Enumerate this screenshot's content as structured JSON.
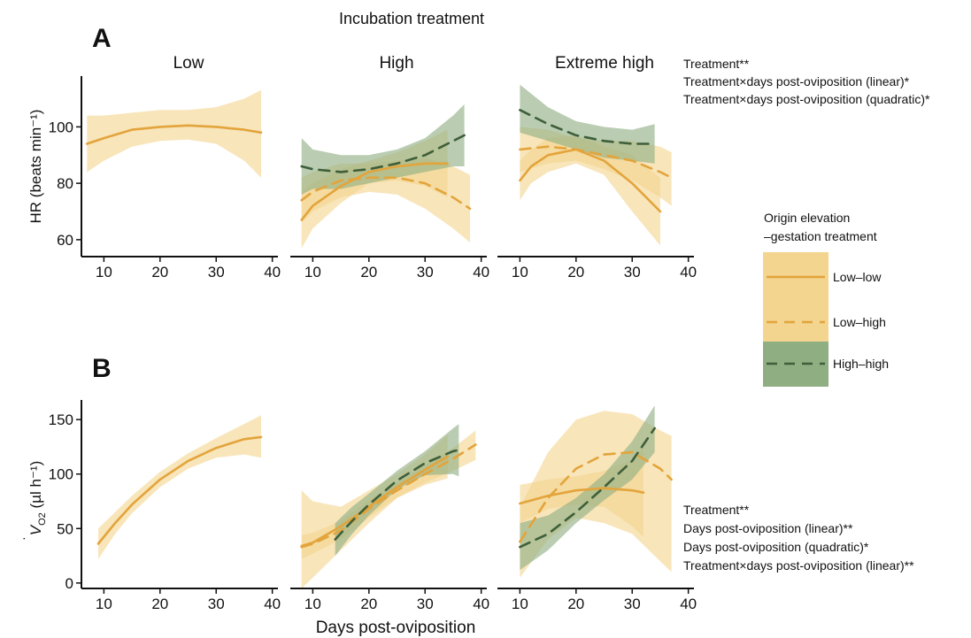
{
  "figure": {
    "top_title": "Incubation treatment",
    "x_axis_label": "Days post-oviposition",
    "panel_letters": [
      "A",
      "B"
    ],
    "column_titles": [
      "Low",
      "High",
      "Extreme high"
    ],
    "ylabel_A": "HR (beats min⁻¹)",
    "ylabel_B_pre": "V",
    "ylabel_B_sub": "O2",
    "ylabel_B_unit": "(µl h⁻¹)",
    "stats_A": [
      "Treatment**",
      "Treatment×days post-oviposition (linear)*",
      "Treatment×days post-oviposition (quadratic)*"
    ],
    "stats_B": [
      "Treatment**",
      "Days post-oviposition (linear)**",
      "Days post-oviposition (quadratic)*",
      "Treatment×days post-oviposition (linear)**"
    ],
    "legend": {
      "title_line1": "Origin elevation",
      "title_line2": "–gestation treatment",
      "items": [
        {
          "label": "Low–low",
          "color": "#E3A43B",
          "fill": "#F3D58F",
          "dash": "solid"
        },
        {
          "label": "Low–high",
          "color": "#E3A43B",
          "fill": "#F3D58F",
          "dash": "dashed"
        },
        {
          "label": "High–high",
          "color": "#3E5F3A",
          "fill": "#8FAE82",
          "dash": "dashed"
        }
      ]
    }
  },
  "chart_data": [
    {
      "type": "line",
      "panel": "A",
      "column": "Low",
      "xlim": [
        6,
        41
      ],
      "ylim": [
        54,
        118
      ],
      "yticks": [
        60,
        80,
        100
      ],
      "xticks": [
        10,
        20,
        30,
        40
      ],
      "series": [
        {
          "group": "Low–low",
          "x": [
            7,
            10,
            15,
            20,
            25,
            30,
            35,
            38
          ],
          "y": [
            94,
            96,
            99,
            100,
            100.5,
            100,
            99,
            98
          ],
          "lower": [
            84,
            88,
            93,
            95,
            95.5,
            94,
            88,
            82
          ],
          "upper": [
            104,
            104,
            105,
            106,
            106,
            107,
            110,
            113
          ]
        }
      ]
    },
    {
      "type": "line",
      "panel": "A",
      "column": "High",
      "xlim": [
        6,
        41
      ],
      "ylim": [
        54,
        118
      ],
      "yticks": [
        60,
        80,
        100
      ],
      "xticks": [
        10,
        20,
        30,
        40
      ],
      "series": [
        {
          "group": "Low–low",
          "x": [
            8,
            10,
            15,
            20,
            25,
            30,
            34
          ],
          "y": [
            67,
            72,
            79,
            84,
            86,
            87,
            87
          ],
          "lower": [
            57,
            64,
            73,
            80,
            81,
            79,
            75
          ],
          "upper": [
            77,
            80,
            85,
            88,
            91,
            95,
            99
          ]
        },
        {
          "group": "Low–high",
          "x": [
            8,
            10,
            15,
            20,
            25,
            30,
            35,
            38
          ],
          "y": [
            74,
            77,
            81,
            82,
            82,
            80,
            75,
            71
          ],
          "lower": [
            66,
            70,
            75,
            77,
            76,
            71,
            64,
            59
          ],
          "upper": [
            82,
            84,
            87,
            87,
            88,
            89,
            86,
            83
          ]
        },
        {
          "group": "High–high",
          "x": [
            8,
            10,
            15,
            20,
            25,
            30,
            35,
            37
          ],
          "y": [
            86,
            85,
            84,
            85,
            87,
            90,
            95,
            97
          ],
          "lower": [
            76,
            78,
            78,
            80,
            82,
            84,
            86,
            86
          ],
          "upper": [
            96,
            92,
            90,
            90,
            92,
            96,
            104,
            108
          ]
        }
      ]
    },
    {
      "type": "line",
      "panel": "A",
      "column": "Extreme high",
      "xlim": [
        6,
        41
      ],
      "ylim": [
        54,
        118
      ],
      "yticks": [
        60,
        80,
        100
      ],
      "xticks": [
        10,
        20,
        30,
        40
      ],
      "series": [
        {
          "group": "Low–low",
          "x": [
            10,
            12,
            15,
            20,
            25,
            30,
            35
          ],
          "y": [
            81,
            86,
            90,
            92,
            88,
            80,
            70
          ],
          "lower": [
            74,
            80,
            84,
            87,
            83,
            70,
            58
          ],
          "upper": [
            88,
            92,
            96,
            97,
            93,
            90,
            82
          ]
        },
        {
          "group": "Low–high",
          "x": [
            10,
            15,
            20,
            25,
            30,
            35,
            37
          ],
          "y": [
            92,
            93,
            92,
            90,
            88,
            84,
            82
          ],
          "lower": [
            84,
            87,
            88,
            85,
            81,
            75,
            72
          ],
          "upper": [
            100,
            99,
            96,
            95,
            95,
            93,
            91
          ]
        },
        {
          "group": "High–high",
          "x": [
            10,
            15,
            20,
            25,
            30,
            34
          ],
          "y": [
            106,
            101,
            97,
            95,
            94,
            94
          ],
          "lower": [
            98,
            95,
            92,
            89,
            88,
            87
          ],
          "upper": [
            115,
            107,
            102,
            100,
            99,
            101
          ]
        }
      ]
    },
    {
      "type": "line",
      "panel": "B",
      "column": "Low",
      "xlim": [
        6,
        41
      ],
      "ylim": [
        -5,
        168
      ],
      "yticks": [
        0,
        50,
        100,
        150
      ],
      "xticks": [
        10,
        20,
        30,
        40
      ],
      "series": [
        {
          "group": "Low–low",
          "x": [
            9,
            12,
            15,
            20,
            25,
            30,
            35,
            38
          ],
          "y": [
            36,
            55,
            72,
            95,
            112,
            124,
            132,
            134
          ],
          "lower": [
            22,
            45,
            64,
            88,
            105,
            115,
            118,
            115
          ],
          "upper": [
            50,
            65,
            80,
            102,
            119,
            133,
            146,
            154
          ]
        }
      ]
    },
    {
      "type": "line",
      "panel": "B",
      "column": "High",
      "xlim": [
        6,
        41
      ],
      "ylim": [
        -5,
        168
      ],
      "yticks": [
        0,
        50,
        100,
        150
      ],
      "xticks": [
        10,
        20,
        30,
        40
      ],
      "series": [
        {
          "group": "Low–low",
          "x": [
            8,
            10,
            15,
            20,
            25,
            30,
            34
          ],
          "y": [
            34,
            37,
            52,
            70,
            88,
            104,
            116
          ],
          "lower": [
            -5,
            5,
            30,
            55,
            78,
            90,
            96
          ],
          "upper": [
            85,
            75,
            70,
            85,
            100,
            118,
            136
          ]
        },
        {
          "group": "Low–high",
          "x": [
            8,
            10,
            15,
            20,
            25,
            30,
            35,
            39
          ],
          "y": [
            33,
            36,
            48,
            68,
            85,
            100,
            114,
            127
          ],
          "lower": [
            22,
            27,
            40,
            60,
            78,
            92,
            103,
            113
          ],
          "upper": [
            44,
            46,
            57,
            76,
            92,
            108,
            124,
            140
          ]
        },
        {
          "group": "High–high",
          "x": [
            14,
            17,
            20,
            25,
            30,
            35,
            36
          ],
          "y": [
            40,
            57,
            72,
            94,
            110,
            121,
            122
          ],
          "lower": [
            25,
            45,
            62,
            86,
            99,
            100,
            98
          ],
          "upper": [
            55,
            70,
            82,
            103,
            121,
            142,
            146
          ]
        }
      ]
    },
    {
      "type": "line",
      "panel": "B",
      "column": "Extreme high",
      "xlim": [
        6,
        41
      ],
      "ylim": [
        -5,
        168
      ],
      "yticks": [
        0,
        50,
        100,
        150
      ],
      "xticks": [
        10,
        20,
        30,
        40
      ],
      "series": [
        {
          "group": "Low–low",
          "x": [
            10,
            15,
            20,
            25,
            30,
            32
          ],
          "y": [
            73,
            80,
            85,
            87,
            85,
            83
          ],
          "lower": [
            55,
            68,
            72,
            70,
            52,
            42
          ],
          "upper": [
            90,
            95,
            98,
            103,
            113,
            124
          ]
        },
        {
          "group": "Low–high",
          "x": [
            10,
            15,
            20,
            25,
            30,
            35,
            37
          ],
          "y": [
            38,
            78,
            105,
            118,
            120,
            105,
            95
          ],
          "lower": [
            5,
            40,
            60,
            55,
            45,
            20,
            10
          ],
          "upper": [
            70,
            120,
            150,
            158,
            155,
            140,
            135
          ]
        },
        {
          "group": "High–high",
          "x": [
            10,
            15,
            20,
            25,
            30,
            34
          ],
          "y": [
            33,
            45,
            65,
            88,
            112,
            142
          ],
          "lower": [
            12,
            30,
            55,
            76,
            95,
            120
          ],
          "upper": [
            55,
            62,
            78,
            100,
            130,
            163
          ]
        }
      ]
    }
  ]
}
